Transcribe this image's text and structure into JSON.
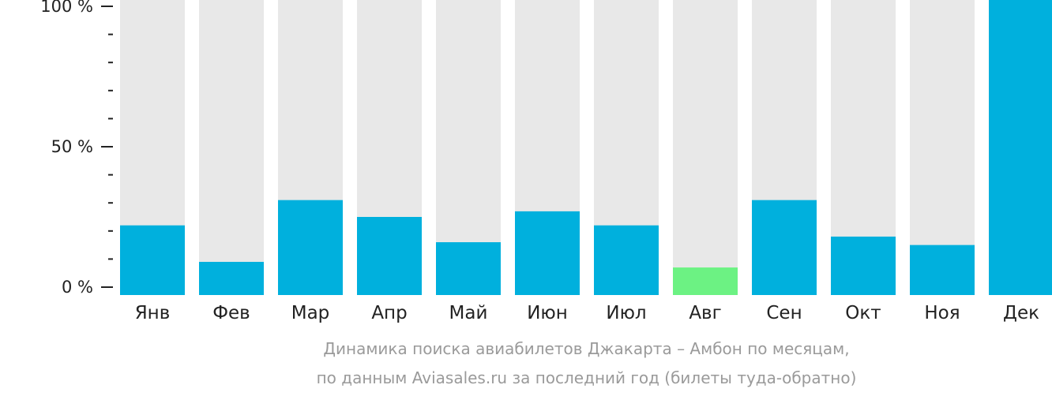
{
  "chart_data": {
    "type": "bar",
    "categories": [
      "Янв",
      "Фев",
      "Мар",
      "Апр",
      "Май",
      "Июн",
      "Июл",
      "Авг",
      "Сен",
      "Окт",
      "Ноя",
      "Дек"
    ],
    "values": [
      22,
      9,
      31,
      25,
      16,
      27,
      22,
      7,
      31,
      18,
      15,
      100
    ],
    "y_tick_labels": [
      "0 %",
      "50 %",
      "100 %"
    ],
    "ylim": [
      0,
      100
    ],
    "colors": {
      "bar": "#00b0dd",
      "bar_highlight": "#6cf283",
      "background_bar": "#e8e8e8",
      "axis": "#222222"
    },
    "highlight_category": "Авг"
  },
  "caption": {
    "line1": "Динамика поиска авиабилетов Джакарта – Амбон по месяцам,",
    "line2": "по данным Aviasales.ru за последний год (билеты туда-обратно)"
  }
}
